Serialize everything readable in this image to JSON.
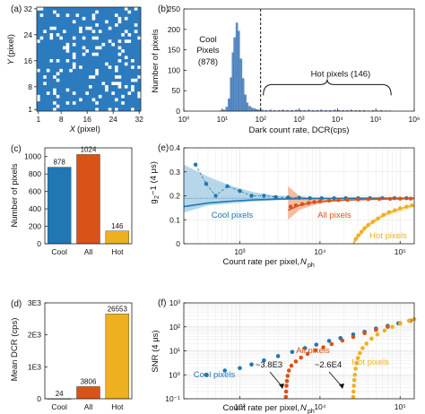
{
  "colors": {
    "cool": "#1f77b4",
    "all": "#d95319",
    "hot": "#edb120",
    "all_bar": "#d95319",
    "hist_bar": "#5b8fc9",
    "pixel_map_bg": "#2c7bbf",
    "pixel_map_hot": "#ffffff",
    "cool_band": "#9ecae1",
    "all_band": "#f4a582",
    "hot_band": "#fde0a0"
  },
  "chart_data": [
    {
      "panel": "(a)",
      "type": "heatmap",
      "xlabel_var": "X",
      "xlabel_unit": "(pixel)",
      "ylabel_var": "Y",
      "ylabel_unit": "(pixel)",
      "xticks": [
        "1",
        "8",
        "16",
        "24",
        "32"
      ],
      "yticks": [
        "1",
        "8",
        "16",
        "24",
        "32"
      ],
      "grid_size": 32,
      "hot_pixel_count": 146
    },
    {
      "panel": "(b)",
      "type": "bar",
      "xscale": "log",
      "xlabel": "Dark count rate, DCR(cps)",
      "ylabel": "Number of pixels",
      "xlim": [
        1,
        1000000
      ],
      "ylim": [
        0,
        250
      ],
      "yticks": [
        "0",
        "50",
        "100",
        "150",
        "200",
        "250"
      ],
      "xticks": [
        "10⁰",
        "10¹",
        "10²",
        "10³",
        "10⁴",
        "10⁵",
        "10⁶"
      ],
      "threshold_dcr": 100,
      "annotations": {
        "cool_line1": "Cool",
        "cool_line2": "Pixels",
        "cool_line3": "(878)",
        "hot": "Hot pixels (146)"
      },
      "bins": [
        {
          "x": 9,
          "y": 1
        },
        {
          "x": 11,
          "y": 3
        },
        {
          "x": 13,
          "y": 10
        },
        {
          "x": 15,
          "y": 30
        },
        {
          "x": 17,
          "y": 82
        },
        {
          "x": 19,
          "y": 143
        },
        {
          "x": 21,
          "y": 180
        },
        {
          "x": 24,
          "y": 216
        },
        {
          "x": 27,
          "y": 196
        },
        {
          "x": 31,
          "y": 128
        },
        {
          "x": 35,
          "y": 80
        },
        {
          "x": 40,
          "y": 40
        },
        {
          "x": 45,
          "y": 20
        },
        {
          "x": 52,
          "y": 12
        },
        {
          "x": 60,
          "y": 8
        },
        {
          "x": 70,
          "y": 6
        },
        {
          "x": 80,
          "y": 4
        },
        {
          "x": 92,
          "y": 3
        },
        {
          "x": 110,
          "y": 3
        },
        {
          "x": 140,
          "y": 2
        },
        {
          "x": 180,
          "y": 3
        },
        {
          "x": 230,
          "y": 2
        },
        {
          "x": 300,
          "y": 2
        },
        {
          "x": 380,
          "y": 3
        },
        {
          "x": 500,
          "y": 2
        },
        {
          "x": 650,
          "y": 2
        },
        {
          "x": 850,
          "y": 3
        },
        {
          "x": 1100,
          "y": 2
        },
        {
          "x": 1400,
          "y": 2
        },
        {
          "x": 1800,
          "y": 3
        },
        {
          "x": 2300,
          "y": 2
        },
        {
          "x": 3000,
          "y": 2
        },
        {
          "x": 3800,
          "y": 3
        },
        {
          "x": 5000,
          "y": 2
        },
        {
          "x": 6500,
          "y": 2
        },
        {
          "x": 8500,
          "y": 3
        },
        {
          "x": 11000,
          "y": 2
        },
        {
          "x": 14000,
          "y": 2
        },
        {
          "x": 18000,
          "y": 2
        },
        {
          "x": 23000,
          "y": 3
        },
        {
          "x": 30000,
          "y": 2
        },
        {
          "x": 38000,
          "y": 2
        },
        {
          "x": 50000,
          "y": 2
        },
        {
          "x": 65000,
          "y": 1
        },
        {
          "x": 85000,
          "y": 2
        },
        {
          "x": 110000,
          "y": 1
        },
        {
          "x": 140000,
          "y": 2
        },
        {
          "x": 180000,
          "y": 1
        },
        {
          "x": 230000,
          "y": 1
        }
      ]
    },
    {
      "panel": "(c)",
      "type": "bar",
      "categories": [
        "Cool",
        "All",
        "Hot"
      ],
      "values": [
        878,
        1024,
        146
      ],
      "labels": [
        "878",
        "1024",
        "146"
      ],
      "ylabel": "Number of pixels",
      "ylim": [
        0,
        1100
      ],
      "yticks": [
        "0",
        "200",
        "400",
        "600",
        "800",
        "1000"
      ]
    },
    {
      "panel": "(d)",
      "type": "bar",
      "categories": [
        "Cool",
        "All",
        "Hot"
      ],
      "values": [
        24,
        3806,
        26553
      ],
      "labels": [
        "24",
        "3806",
        "26553"
      ],
      "ylabel": "Mean DCR (cps)",
      "ylim": [
        0,
        30000
      ],
      "yticks": [
        "0",
        "1E3",
        "2E3",
        "3E3"
      ]
    },
    {
      "panel": "(e)",
      "type": "line",
      "xscale": "log",
      "xlabel_prefix": "Count rate per pixel, ",
      "xlabel_var": "N",
      "xlabel_sub": "ph",
      "ylabel_main": "g",
      "ylabel_sub": "2",
      "ylabel_rest": "−1 (4 μs)",
      "xlim": [
        200,
        150000
      ],
      "ylim": [
        0,
        0.4
      ],
      "yticks": [
        "0",
        "0.1",
        "0.2",
        "0.3",
        "0.4"
      ],
      "xticks": [
        "10³",
        "10⁴",
        "10⁵"
      ],
      "series": [
        {
          "name": "Cool pixels",
          "points": [
            [
              280,
              0.33
            ],
            [
              380,
              0.25
            ],
            [
              500,
              0.2
            ],
            [
              700,
              0.24
            ],
            [
              1000,
              0.22
            ],
            [
              1400,
              0.2
            ],
            [
              2000,
              0.2
            ],
            [
              2800,
              0.195
            ],
            [
              4000,
              0.193
            ],
            [
              5500,
              0.192
            ],
            [
              7500,
              0.19
            ],
            [
              10500,
              0.19
            ],
            [
              15000,
              0.19
            ],
            [
              21000,
              0.19
            ],
            [
              30000,
              0.19
            ],
            [
              42000,
              0.19
            ],
            [
              60000,
              0.19
            ],
            [
              85000,
              0.19
            ],
            [
              120000,
              0.19
            ]
          ],
          "fit": [
            [
              200,
              0.155
            ],
            [
              400,
              0.17
            ],
            [
              800,
              0.178
            ],
            [
              1500,
              0.183
            ],
            [
              3000,
              0.186
            ],
            [
              6000,
              0.188
            ],
            [
              12000,
              0.189
            ],
            [
              30000,
              0.19
            ],
            [
              60000,
              0.19
            ],
            [
              150000,
              0.19
            ]
          ],
          "band": [
            [
              200,
              0.13,
              0.33
            ],
            [
              400,
              0.16,
              0.28
            ],
            [
              800,
              0.168,
              0.24
            ],
            [
              1500,
              0.176,
              0.215
            ],
            [
              3000,
              0.182,
              0.2
            ],
            [
              6000,
              0.185,
              0.195
            ],
            [
              12000,
              0.187,
              0.193
            ],
            [
              150000,
              0.188,
              0.192
            ]
          ]
        },
        {
          "name": "All pixels",
          "points": [
            [
              4300,
              0.155
            ],
            [
              5000,
              0.16
            ],
            [
              6000,
              0.165
            ],
            [
              7200,
              0.17
            ],
            [
              8500,
              0.174
            ],
            [
              10000,
              0.177
            ],
            [
              13000,
              0.18
            ],
            [
              17000,
              0.182
            ],
            [
              22000,
              0.183
            ],
            [
              30000,
              0.185
            ],
            [
              40000,
              0.186
            ],
            [
              55000,
              0.187
            ],
            [
              75000,
              0.187
            ],
            [
              100000,
              0.188
            ],
            [
              135000,
              0.188
            ]
          ],
          "fit": [
            [
              4000,
              0.14
            ],
            [
              5500,
              0.16
            ],
            [
              8000,
              0.172
            ],
            [
              12000,
              0.178
            ],
            [
              20000,
              0.182
            ],
            [
              40000,
              0.185
            ],
            [
              80000,
              0.187
            ],
            [
              150000,
              0.188
            ]
          ],
          "band": [
            [
              4000,
              0.1,
              0.24
            ],
            [
              5500,
              0.14,
              0.2
            ],
            [
              8000,
              0.16,
              0.19
            ],
            [
              12000,
              0.172,
              0.186
            ],
            [
              20000,
              0.179,
              0.186
            ],
            [
              150000,
              0.186,
              0.19
            ]
          ]
        },
        {
          "name": "Hot pixels",
          "points": [
            [
              28000,
              0.02
            ],
            [
              30000,
              0.035
            ],
            [
              33000,
              0.05
            ],
            [
              36000,
              0.065
            ],
            [
              40000,
              0.078
            ],
            [
              46000,
              0.092
            ],
            [
              53000,
              0.105
            ],
            [
              62000,
              0.12
            ],
            [
              73000,
              0.132
            ],
            [
              86000,
              0.14
            ],
            [
              100000,
              0.148
            ],
            [
              120000,
              0.155
            ],
            [
              140000,
              0.16
            ]
          ],
          "fit": [
            [
              26000,
              0.0
            ],
            [
              30000,
              0.03
            ],
            [
              35000,
              0.058
            ],
            [
              42000,
              0.082
            ],
            [
              52000,
              0.103
            ],
            [
              65000,
              0.122
            ],
            [
              85000,
              0.138
            ],
            [
              110000,
              0.15
            ],
            [
              150000,
              0.16
            ]
          ],
          "band": [
            [
              26000,
              0.0,
              0.02
            ],
            [
              30000,
              0.02,
              0.045
            ],
            [
              40000,
              0.07,
              0.09
            ],
            [
              60000,
              0.11,
              0.128
            ],
            [
              150000,
              0.152,
              0.168
            ]
          ]
        }
      ],
      "reference_line": {
        "y": 0.19,
        "color": "#1f77b4"
      }
    },
    {
      "panel": "(f)",
      "type": "scatter",
      "xscale": "log",
      "yscale": "log",
      "xlabel_prefix": "Count rate per pixel, ",
      "xlabel_var": "N",
      "xlabel_sub": "ph",
      "ylabel": "SNR (4 μs)",
      "xlim": [
        200,
        150000
      ],
      "ylim": [
        0.1,
        1000
      ],
      "yticks": [
        "10⁻¹",
        "10⁰",
        "10¹",
        "10²",
        "10³"
      ],
      "xticks": [
        "10³",
        "10⁴",
        "10⁵"
      ],
      "annotations": {
        "all": "~3.8E3",
        "hot": "~2.6E4"
      },
      "series": [
        {
          "name": "Cool pixels",
          "points": [
            [
              380,
              1.0
            ],
            [
              650,
              1.5
            ],
            [
              1000,
              1.9
            ],
            [
              1400,
              2.7
            ],
            [
              2000,
              4.0
            ],
            [
              3000,
              6.0
            ],
            [
              4500,
              9.0
            ],
            [
              6500,
              13
            ],
            [
              9000,
              18
            ],
            [
              13000,
              26
            ],
            [
              18000,
              34
            ],
            [
              26000,
              48
            ],
            [
              36000,
              62
            ],
            [
              50000,
              85
            ],
            [
              70000,
              110
            ],
            [
              95000,
              140
            ],
            [
              130000,
              180
            ]
          ]
        },
        {
          "name": "All pixels",
          "points": [
            [
              3750,
              0.12
            ],
            [
              3780,
              0.2
            ],
            [
              3820,
              0.35
            ],
            [
              3870,
              0.55
            ],
            [
              3950,
              0.9
            ],
            [
              4100,
              1.5
            ],
            [
              4400,
              2.4
            ],
            [
              5000,
              3.6
            ],
            [
              5800,
              5.2
            ],
            [
              7000,
              7.5
            ],
            [
              8800,
              10.5
            ],
            [
              11000,
              14
            ],
            [
              14000,
              19
            ],
            [
              19000,
              27
            ],
            [
              26000,
              38
            ],
            [
              36000,
              55
            ],
            [
              50000,
              75
            ],
            [
              70000,
              100
            ],
            [
              100000,
              140
            ],
            [
              135000,
              180
            ]
          ]
        },
        {
          "name": "Hot pixels",
          "points": [
            [
              26000,
              0.12
            ],
            [
              26200,
              0.2
            ],
            [
              26500,
              0.35
            ],
            [
              26800,
              0.6
            ],
            [
              27200,
              1.0
            ],
            [
              27800,
              1.8
            ],
            [
              28600,
              3.0
            ],
            [
              29800,
              5.0
            ],
            [
              31500,
              8.0
            ],
            [
              34000,
              13
            ],
            [
              38000,
              20
            ],
            [
              44000,
              32
            ],
            [
              52000,
              48
            ],
            [
              64000,
              70
            ],
            [
              80000,
              100
            ],
            [
              100000,
              135
            ],
            [
              130000,
              180
            ],
            [
              150000,
              210
            ]
          ]
        }
      ]
    }
  ]
}
